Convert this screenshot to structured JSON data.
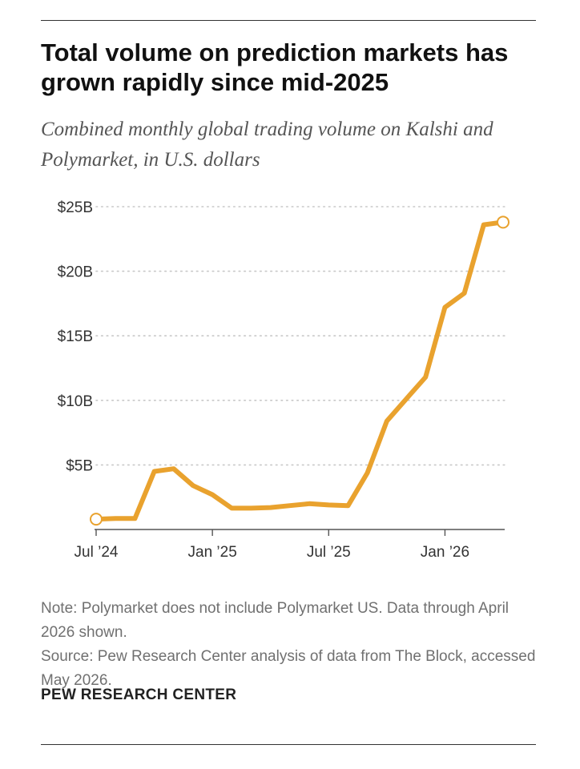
{
  "title": "Total volume on prediction markets has grown rapidly since mid-2025",
  "subtitle": "Combined monthly global trading volume on Kalshi and Polymarket, in U.S. dollars",
  "note": "Note: Polymarket does not include Polymarket US. Data through April 2026 shown.",
  "source": "Source: Pew Research Center analysis of data from The Block, accessed May 2026.",
  "brand": "PEW RESEARCH CENTER",
  "colors": {
    "line": "#E9A22E",
    "grid": "#C8C8C8",
    "axis": "#555555",
    "tick_label": "#333333"
  },
  "chart_data": {
    "type": "line",
    "x": [
      "2024-07",
      "2024-08",
      "2024-09",
      "2024-10",
      "2024-11",
      "2024-12",
      "2025-01",
      "2025-02",
      "2025-03",
      "2025-04",
      "2025-05",
      "2025-06",
      "2025-07",
      "2025-08",
      "2025-09",
      "2025-10",
      "2025-11",
      "2025-12",
      "2026-01",
      "2026-02",
      "2026-03",
      "2026-04"
    ],
    "series": [
      {
        "values": [
          0.8,
          0.85,
          0.85,
          4.5,
          4.7,
          3.4,
          2.7,
          1.65,
          1.65,
          1.7,
          1.85,
          2.0,
          1.9,
          1.85,
          4.4,
          8.4,
          10.1,
          11.8,
          17.2,
          18.3,
          23.6,
          23.8
        ]
      }
    ],
    "y_ticks": [
      {
        "value": 5,
        "label": "$5B"
      },
      {
        "value": 10,
        "label": "$10B"
      },
      {
        "value": 15,
        "label": "$15B"
      },
      {
        "value": 20,
        "label": "$20B"
      },
      {
        "value": 25,
        "label": "$25B"
      }
    ],
    "x_ticks": [
      {
        "x": "2024-07",
        "label": "Jul ’24"
      },
      {
        "x": "2025-01",
        "label": "Jan ’25"
      },
      {
        "x": "2025-07",
        "label": "Jul ’25"
      },
      {
        "x": "2026-01",
        "label": "Jan ’26"
      }
    ],
    "ylim": [
      0,
      25
    ],
    "y_unit": "billions of U.S. dollars",
    "grid": "horizontal dotted",
    "legend": "none",
    "markers": "open circles at first and last points"
  }
}
